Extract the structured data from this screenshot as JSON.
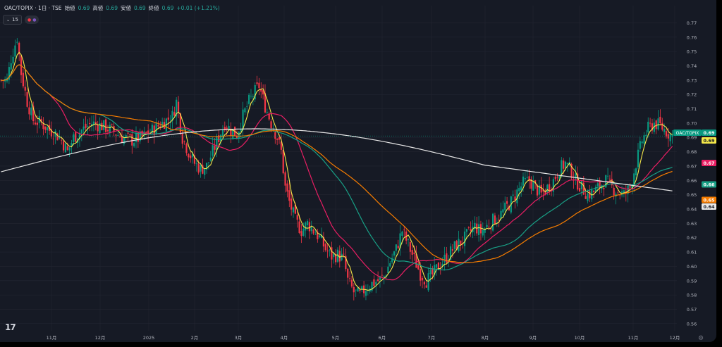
{
  "header": {
    "symbol": "OAC/TOPIX · 1日 · TSE",
    "open_label": "始値",
    "open_value": "0.69",
    "high_label": "高値",
    "high_value": "0.69",
    "low_label": "安値",
    "low_value": "0.69",
    "close_label": "終値",
    "close_value": "0.69",
    "change": "+0.01 (+1.21%)"
  },
  "indicator_bar": {
    "collapse_label": "15"
  },
  "colors": {
    "background": "#161a25",
    "up": "#089981",
    "down": "#f23645",
    "ma_yellow": "#f5e84a",
    "ma_pink": "#e91e63",
    "ma_teal": "#18a086",
    "ma_orange": "#f57c00",
    "ma_white": "#e8e8e8",
    "grid": "#232632",
    "axis_text": "#b2b5be"
  },
  "chart_data": {
    "type": "line",
    "x_labels": [
      "11月",
      "12月",
      "2025",
      "2月",
      "3月",
      "4月",
      "5月",
      "6月",
      "7月",
      "8月",
      "9月",
      "10月",
      "11月",
      "12月"
    ],
    "y_ticks": [
      "0.77",
      "0.76",
      "0.75",
      "0.74",
      "0.73",
      "0.72",
      "0.71",
      "0.70",
      "0.69",
      "0.68",
      "0.67",
      "0.66",
      "0.65",
      "0.64",
      "0.63",
      "0.62",
      "0.61",
      "0.60",
      "0.59",
      "0.58",
      "0.57",
      "0.56"
    ],
    "ylim": [
      0.555,
      0.782
    ],
    "price_tags": [
      {
        "label": "OAC/TOPIX",
        "value": "0.69",
        "color": "#089981",
        "text_color": "#ffffff"
      },
      {
        "label": "",
        "value": "0.69",
        "color": "#f5e84a",
        "text_color": "#131722"
      },
      {
        "label": "",
        "value": "0.67",
        "color": "#e91e63",
        "text_color": "#ffffff"
      },
      {
        "label": "",
        "value": "0.66",
        "color": "#18a086",
        "text_color": "#ffffff"
      },
      {
        "label": "",
        "value": "0.65",
        "color": "#f57c00",
        "text_color": "#ffffff"
      },
      {
        "label": "",
        "value": "0.64",
        "color": "#e8e8e8",
        "text_color": "#131722"
      }
    ],
    "price_keypoints": [
      [
        0,
        0.73
      ],
      [
        3,
        0.73
      ],
      [
        5,
        0.745
      ],
      [
        8,
        0.76
      ],
      [
        10,
        0.735
      ],
      [
        13,
        0.715
      ],
      [
        16,
        0.702
      ],
      [
        20,
        0.7
      ],
      [
        24,
        0.695
      ],
      [
        27,
        0.693
      ],
      [
        30,
        0.688
      ],
      [
        33,
        0.68
      ],
      [
        36,
        0.69
      ],
      [
        40,
        0.695
      ],
      [
        45,
        0.7
      ],
      [
        50,
        0.698
      ],
      [
        55,
        0.695
      ],
      [
        60,
        0.69
      ],
      [
        65,
        0.688
      ],
      [
        70,
        0.69
      ],
      [
        75,
        0.695
      ],
      [
        80,
        0.7
      ],
      [
        85,
        0.705
      ],
      [
        87,
        0.715
      ],
      [
        90,
        0.69
      ],
      [
        93,
        0.68
      ],
      [
        96,
        0.672
      ],
      [
        99,
        0.668
      ],
      [
        102,
        0.67
      ],
      [
        105,
        0.68
      ],
      [
        108,
        0.69
      ],
      [
        111,
        0.7
      ],
      [
        114,
        0.695
      ],
      [
        117,
        0.692
      ],
      [
        120,
        0.705
      ],
      [
        123,
        0.715
      ],
      [
        126,
        0.722
      ],
      [
        128,
        0.726
      ],
      [
        131,
        0.712
      ],
      [
        134,
        0.7
      ],
      [
        137,
        0.69
      ],
      [
        139,
        0.68
      ],
      [
        141,
        0.655
      ],
      [
        143,
        0.645
      ],
      [
        146,
        0.632
      ],
      [
        149,
        0.625
      ],
      [
        152,
        0.63
      ],
      [
        155,
        0.625
      ],
      [
        158,
        0.62
      ],
      [
        161,
        0.612
      ],
      [
        164,
        0.607
      ],
      [
        167,
        0.608
      ],
      [
        170,
        0.605
      ],
      [
        172,
        0.59
      ],
      [
        175,
        0.582
      ],
      [
        178,
        0.58
      ],
      [
        181,
        0.585
      ],
      [
        184,
        0.588
      ],
      [
        187,
        0.59
      ],
      [
        190,
        0.593
      ],
      [
        193,
        0.603
      ],
      [
        196,
        0.612
      ],
      [
        199,
        0.625
      ],
      [
        202,
        0.615
      ],
      [
        205,
        0.605
      ],
      [
        208,
        0.595
      ],
      [
        211,
        0.59
      ],
      [
        214,
        0.594
      ],
      [
        217,
        0.6
      ],
      [
        220,
        0.605
      ],
      [
        223,
        0.61
      ],
      [
        226,
        0.615
      ],
      [
        229,
        0.618
      ],
      [
        232,
        0.623
      ],
      [
        235,
        0.628
      ],
      [
        238,
        0.624
      ],
      [
        241,
        0.628
      ],
      [
        244,
        0.632
      ],
      [
        247,
        0.635
      ],
      [
        250,
        0.64
      ],
      [
        253,
        0.645
      ],
      [
        256,
        0.652
      ],
      [
        259,
        0.658
      ],
      [
        262,
        0.66
      ],
      [
        265,
        0.655
      ],
      [
        268,
        0.65
      ],
      [
        271,
        0.655
      ],
      [
        274,
        0.66
      ],
      [
        277,
        0.668
      ],
      [
        280,
        0.672
      ],
      [
        283,
        0.666
      ],
      [
        285,
        0.66
      ],
      [
        288,
        0.655
      ],
      [
        291,
        0.65
      ],
      [
        294,
        0.652
      ],
      [
        297,
        0.656
      ],
      [
        300,
        0.66
      ],
      [
        303,
        0.655
      ],
      [
        306,
        0.652
      ],
      [
        309,
        0.65
      ],
      [
        312,
        0.655
      ],
      [
        315,
        0.672
      ],
      [
        318,
        0.688
      ],
      [
        321,
        0.696
      ],
      [
        324,
        0.7
      ],
      [
        327,
        0.698
      ],
      [
        330,
        0.694
      ],
      [
        333,
        0.691
      ]
    ],
    "series": [
      {
        "color_key": "ma_yellow",
        "period": 5
      },
      {
        "color_key": "ma_pink",
        "period": 25
      },
      {
        "color_key": "ma_teal",
        "period": 50
      },
      {
        "color_key": "ma_orange",
        "period": 75
      },
      {
        "color_key": "ma_white",
        "period": 200
      }
    ]
  }
}
